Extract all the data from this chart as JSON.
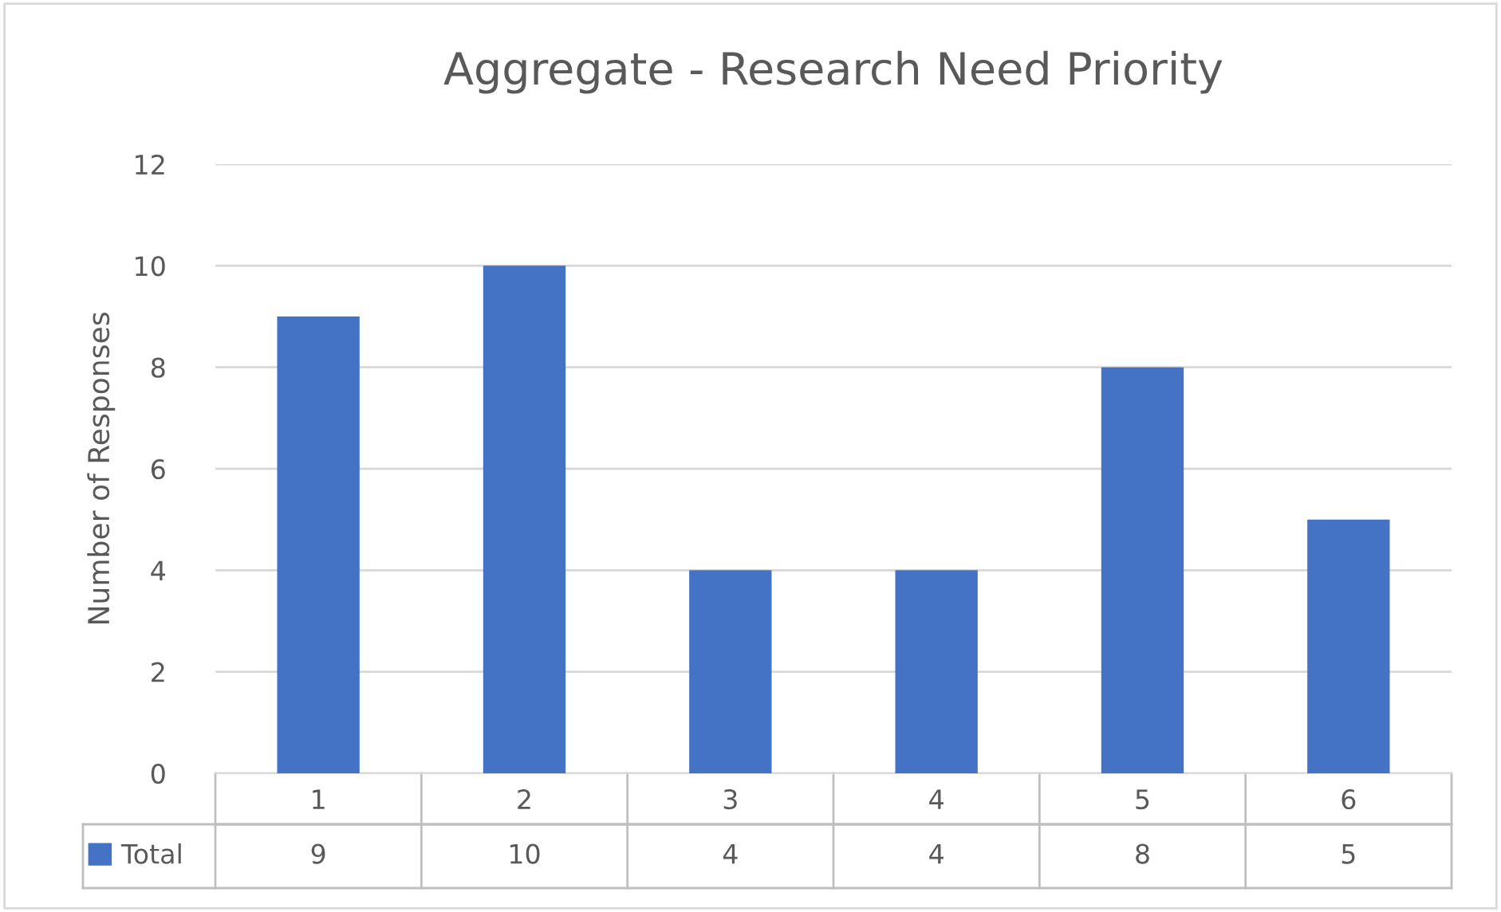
{
  "chart_data": {
    "type": "bar",
    "title": "Aggregate - Research Need Priority",
    "ylabel": "Number of Responses",
    "categories": [
      "1",
      "2",
      "3",
      "4",
      "5",
      "6"
    ],
    "series": [
      {
        "name": "Total",
        "color": "#4472c4",
        "values": [
          9,
          10,
          4,
          4,
          8,
          5
        ]
      }
    ],
    "ylim": [
      0,
      12
    ],
    "yticks": [
      0,
      2,
      4,
      6,
      8,
      10,
      12
    ],
    "grid": "y",
    "legend": "bottom",
    "data_labels": true
  }
}
